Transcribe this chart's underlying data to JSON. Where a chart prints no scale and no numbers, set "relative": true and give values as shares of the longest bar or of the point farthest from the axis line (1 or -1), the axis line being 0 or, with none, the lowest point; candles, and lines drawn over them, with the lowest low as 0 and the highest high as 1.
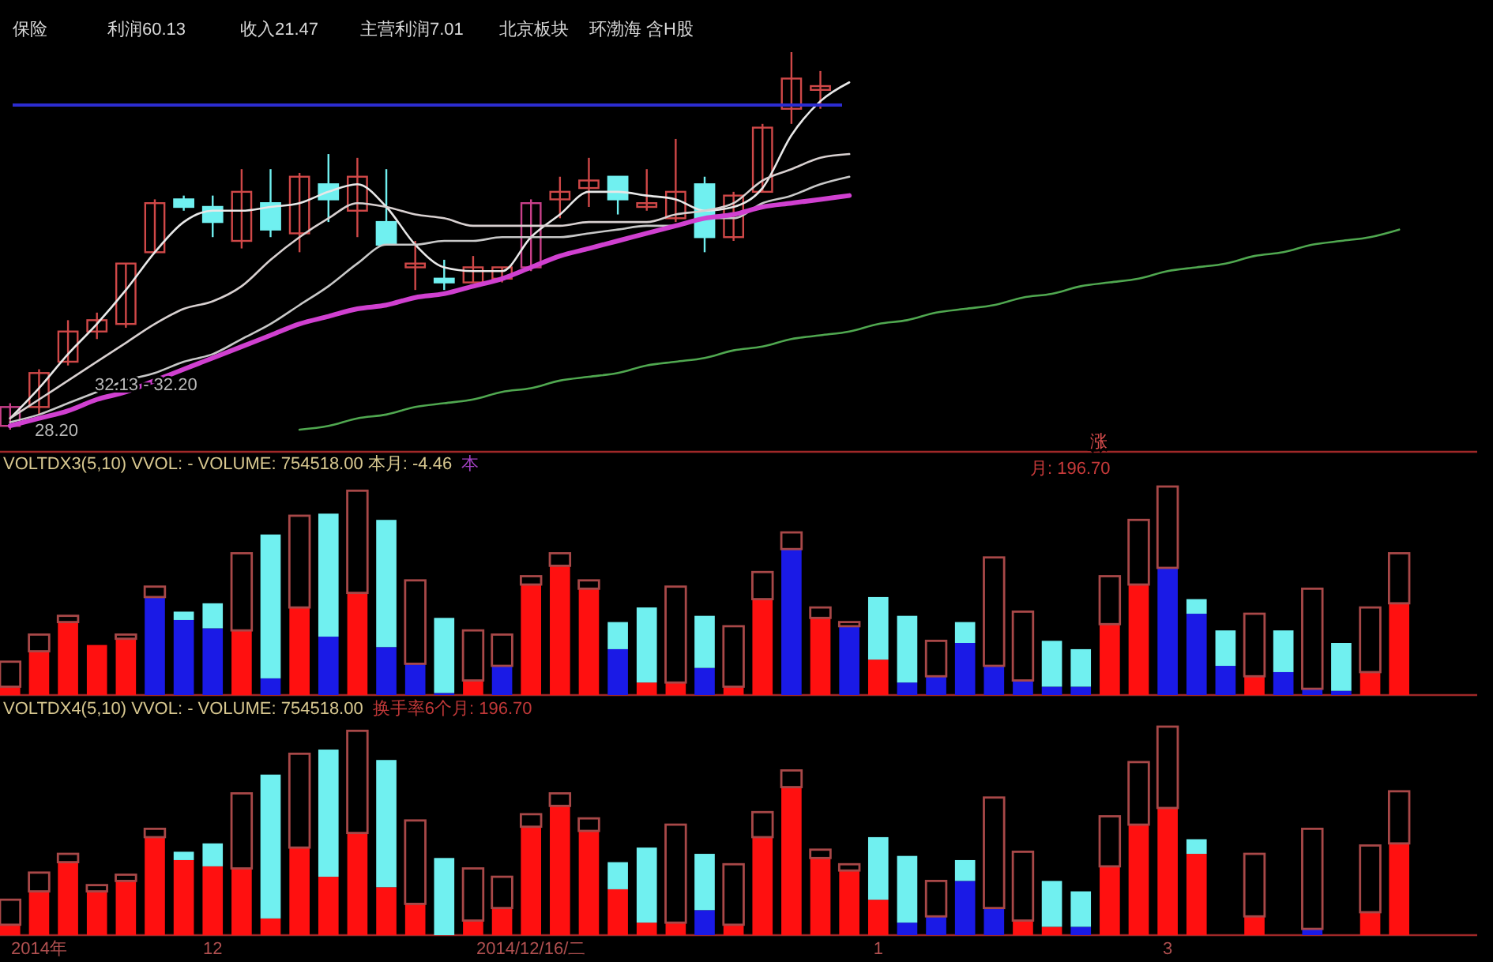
{
  "chart_data": [
    {
      "type": "candlestick",
      "relative": true,
      "tick_labels": false,
      "categories": [
        null,
        null,
        null,
        null,
        null,
        null,
        null,
        null,
        null,
        null,
        null,
        null,
        null,
        null,
        null,
        null,
        null,
        null,
        null,
        null,
        null,
        null,
        null,
        null,
        null,
        null,
        null,
        null,
        null,
        null,
        null,
        null,
        null,
        null,
        null,
        null,
        null,
        null,
        null,
        null,
        null,
        null,
        null,
        null,
        null,
        null,
        null,
        null,
        null
      ],
      "ohlc": [
        [
          0.01,
          0.07,
          0,
          0.06
        ],
        [
          0.06,
          0.16,
          0.04,
          0.15
        ],
        [
          0.18,
          0.29,
          0.17,
          0.26
        ],
        [
          0.26,
          0.31,
          0.24,
          0.29
        ],
        [
          0.28,
          0.44,
          0.27,
          0.44
        ],
        [
          0.47,
          0.61,
          0.47,
          0.6
        ],
        [
          0.61,
          0.62,
          0.58,
          0.59
        ],
        [
          0.59,
          0.62,
          0.51,
          0.55
        ],
        [
          0.5,
          0.69,
          0.48,
          0.63
        ],
        [
          0.6,
          0.69,
          0.51,
          0.53
        ],
        [
          0.52,
          0.68,
          0.47,
          0.67
        ],
        [
          0.65,
          0.73,
          0.55,
          0.61
        ],
        [
          0.58,
          0.72,
          0.51,
          0.67
        ],
        [
          0.55,
          0.69,
          0.49,
          0.49
        ],
        [
          0.43,
          0.5,
          0.37,
          0.44
        ],
        [
          0.4,
          0.45,
          0.37,
          0.39
        ],
        [
          0.39,
          0.46,
          0.39,
          0.43
        ],
        [
          0.4,
          0.43,
          0.39,
          0.43
        ],
        [
          0.43,
          0.61,
          0.42,
          0.6
        ],
        [
          0.61,
          0.67,
          0.56,
          0.63
        ],
        [
          0.64,
          0.72,
          0.59,
          0.66
        ],
        [
          0.67,
          0.67,
          0.57,
          0.61
        ],
        [
          0.59,
          0.69,
          0.58,
          0.6
        ],
        [
          0.56,
          0.77,
          0.55,
          0.63
        ],
        [
          0.65,
          0.67,
          0.47,
          0.51
        ],
        [
          0.51,
          0.63,
          0.5,
          0.62
        ],
        [
          0.63,
          0.81,
          0.63,
          0.8
        ],
        [
          0.85,
          1,
          0.81,
          0.93
        ],
        [
          0.9,
          0.95,
          0.85,
          0.91
        ],
        null,
        null,
        null,
        null,
        null,
        null,
        null,
        null,
        null,
        null,
        null,
        null,
        null,
        null,
        null,
        null,
        null,
        null,
        null,
        null
      ],
      "colors": [
        "#c8408a",
        "#d04848",
        "#d04848",
        "#d04848",
        "#d04848",
        "#d04848",
        "#70f0f0",
        "#70f0f0",
        "#d04848",
        "#70f0f0",
        "#d04848",
        "#70f0f0",
        "#d04848",
        "#70f0f0",
        "#d04848",
        "#70f0f0",
        "#d04848",
        "#d04848",
        "#c8408a",
        "#d04848",
        "#d04848",
        "#70f0f0",
        "#d04848",
        "#d04848",
        "#70f0f0",
        "#d04848",
        "#d04848",
        "#d04848",
        "#d04848",
        null,
        null,
        null,
        null,
        null,
        null,
        null,
        null,
        null,
        null,
        null,
        null,
        null,
        null,
        null,
        null,
        null,
        null,
        null,
        null
      ],
      "series": [
        {
          "type": "line",
          "color": "#e8e8e8",
          "values": [
            0.03,
            0.11,
            0.2,
            0.28,
            0.37,
            0.47,
            0.55,
            0.58,
            0.58,
            0.59,
            0.6,
            0.63,
            0.65,
            0.59,
            0.49,
            0.43,
            0.42,
            0.42,
            0.51,
            0.57,
            0.63,
            0.63,
            0.62,
            0.61,
            0.58,
            0.59,
            0.64,
            0.78,
            0.87,
            0.92,
            null,
            null,
            null,
            null,
            null,
            null,
            null,
            null,
            null,
            null,
            null,
            null,
            null,
            null,
            null,
            null,
            null,
            null,
            null
          ]
        },
        {
          "type": "line",
          "color": "#d8d0d0",
          "values": [
            0.03,
            0.08,
            0.13,
            0.18,
            0.23,
            0.28,
            0.32,
            0.34,
            0.38,
            0.45,
            0.51,
            0.56,
            0.6,
            0.59,
            0.57,
            0.56,
            0.54,
            0.54,
            0.54,
            0.54,
            0.55,
            0.55,
            0.55,
            0.57,
            0.58,
            0.6,
            0.66,
            0.69,
            0.72,
            0.73,
            null,
            null,
            null,
            null,
            null,
            null,
            null,
            null,
            null,
            null,
            null,
            null,
            null,
            null,
            null,
            null,
            null,
            null,
            null
          ]
        },
        {
          "type": "line",
          "color": "#c8c8c8",
          "values": [
            0.02,
            0.04,
            0.07,
            0.1,
            0.13,
            0.15,
            0.18,
            0.2,
            0.24,
            0.28,
            0.33,
            0.38,
            0.44,
            0.49,
            0.49,
            0.5,
            0.5,
            0.51,
            0.51,
            0.51,
            0.52,
            0.53,
            0.54,
            0.54,
            0.56,
            0.56,
            0.6,
            0.62,
            0.65,
            0.67,
            null,
            null,
            null,
            null,
            null,
            null,
            null,
            null,
            null,
            null,
            null,
            null,
            null,
            null,
            null,
            null,
            null,
            null,
            null
          ]
        },
        {
          "type": "line",
          "color": "#d040d0",
          "values": [
            0.01,
            0.03,
            0.05,
            0.08,
            0.1,
            0.13,
            0.16,
            0.19,
            0.22,
            0.25,
            0.28,
            0.3,
            0.32,
            0.33,
            0.35,
            0.36,
            0.38,
            0.4,
            0.43,
            0.46,
            0.48,
            0.5,
            0.52,
            0.54,
            0.56,
            0.57,
            0.59,
            0.6,
            0.61,
            0.62,
            null,
            null,
            null,
            null,
            null,
            null,
            null,
            null,
            null,
            null,
            null,
            null,
            null,
            null,
            null,
            null,
            null,
            null,
            null
          ]
        },
        {
          "type": "line",
          "color": "#50a850",
          "values": [
            null,
            null,
            null,
            null,
            null,
            null,
            null,
            null,
            null,
            null,
            0,
            0.01,
            0.03,
            0.04,
            0.06,
            0.07,
            0.08,
            0.1,
            0.11,
            0.13,
            0.14,
            0.15,
            0.17,
            0.18,
            0.19,
            0.21,
            0.22,
            0.24,
            0.25,
            0.26,
            0.28,
            0.29,
            0.31,
            0.32,
            0.33,
            0.35,
            0.36,
            0.38,
            0.39,
            0.4,
            0.42,
            0.43,
            0.44,
            0.46,
            0.47,
            0.49,
            0.5,
            0.51,
            0.53
          ]
        }
      ],
      "ref_lines": [
        {
          "axis": "y",
          "value": 0.86,
          "color": "#2c2cd0"
        }
      ],
      "annotations": [
        "保险",
        "利润60.13",
        "收入21.47",
        "主营利润7.01",
        "北京板块",
        "环渤海 含H股",
        "32.13 - 32.20",
        "28.20"
      ]
    },
    {
      "type": "bar",
      "stacked": true,
      "relative": true,
      "tick_labels": false,
      "title": "VOLTDX3(5,10) VVOL: -  VOLUME: 754518.00 本月: -4.46",
      "subtitle": "本",
      "categories": [
        null,
        null,
        null,
        null,
        null,
        null,
        null,
        null,
        null,
        null,
        null,
        null,
        null,
        null,
        null,
        null,
        null,
        null,
        null,
        null,
        null,
        null,
        null,
        null,
        null,
        null,
        null,
        null,
        null,
        null,
        null,
        null,
        null,
        null,
        null,
        null,
        null,
        null,
        null,
        null,
        null,
        null,
        null,
        null,
        null,
        null,
        null,
        null,
        null
      ],
      "series": [
        {
          "colors": [
            "#ff1010",
            "#ff1010",
            "#ff1010",
            "#ff1010",
            "#ff1010",
            "#1a1ae6",
            "#1a1ae6",
            "#1a1ae6",
            "#ff1010",
            "#1a1ae6",
            "#ff1010",
            "#1a1ae6",
            "#ff1010",
            "#1a1ae6",
            "#1a1ae6",
            "#1a1ae6",
            "#ff1010",
            "#1a1ae6",
            "#ff1010",
            "#ff1010",
            "#ff1010",
            "#1a1ae6",
            "#ff1010",
            "#ff1010",
            "#1a1ae6",
            "#ff1010",
            "#ff1010",
            "#1a1ae6",
            "#ff1010",
            "#1a1ae6",
            "#ff1010",
            "#1a1ae6",
            "#1a1ae6",
            "#1a1ae6",
            "#1a1ae6",
            "#1a1ae6",
            "#1a1ae6",
            "#1a1ae6",
            "#ff1010",
            "#ff1010",
            "#1a1ae6",
            "#1a1ae6",
            "#1a1ae6",
            "#ff1010",
            "#1a1ae6",
            "#1a1ae6",
            "#1a1ae6",
            "#ff1010",
            "#ff1010"
          ],
          "values": [
            0.04,
            0.21,
            0.35,
            0.24,
            0.27,
            0.47,
            0.36,
            0.32,
            0.31,
            0.08,
            0.42,
            0.28,
            0.49,
            0.23,
            0.15,
            0.01,
            0.07,
            0.14,
            0.53,
            0.62,
            0.51,
            0.22,
            0.06,
            0.06,
            0.13,
            0.04,
            0.46,
            0.7,
            0.37,
            0.33,
            0.17,
            0.06,
            0.09,
            0.25,
            0.14,
            0.07,
            0.04,
            0.04,
            0.34,
            0.53,
            0.61,
            0.39,
            0.14,
            0.09,
            0.11,
            0.03,
            0.02,
            0.11,
            0.44
          ]
        },
        {
          "color": "#70f0f0",
          "values": [
            null,
            null,
            null,
            null,
            null,
            null,
            0.04,
            0.12,
            null,
            0.69,
            null,
            0.59,
            null,
            0.61,
            null,
            0.36,
            null,
            null,
            null,
            null,
            null,
            0.13,
            0.36,
            null,
            0.25,
            null,
            null,
            null,
            null,
            null,
            0.3,
            0.32,
            null,
            0.1,
            null,
            null,
            0.22,
            0.18,
            null,
            null,
            null,
            0.07,
            0.17,
            null,
            0.2,
            null,
            0.23,
            null,
            null
          ]
        },
        {
          "color": "#a84848",
          "values": [
            0.12,
            0.08,
            0.03,
            null,
            0.02,
            0.05,
            null,
            null,
            0.37,
            null,
            0.44,
            null,
            0.49,
            null,
            0.4,
            null,
            0.24,
            0.15,
            0.04,
            0.06,
            0.04,
            null,
            null,
            0.46,
            null,
            0.29,
            0.13,
            0.08,
            0.05,
            0.02,
            null,
            null,
            0.17,
            null,
            0.52,
            0.33,
            null,
            null,
            0.23,
            0.31,
            0.39,
            null,
            null,
            0.3,
            null,
            0.48,
            null,
            0.31,
            0.24
          ]
        }
      ],
      "annotations": [
        "涨",
        "月: 196.70"
      ]
    },
    {
      "type": "bar",
      "stacked": true,
      "relative": true,
      "tick_labels": "x",
      "title": "VOLTDX4(5,10) VVOL: -  VOLUME: 754518.00",
      "subtitle": "换手率6个月: 196.70",
      "categories": [
        null,
        "2014年",
        null,
        null,
        null,
        null,
        null,
        "12",
        null,
        null,
        null,
        null,
        null,
        null,
        null,
        null,
        null,
        null,
        "2014/12/16/二",
        null,
        null,
        null,
        null,
        null,
        null,
        null,
        null,
        null,
        null,
        null,
        "1",
        null,
        null,
        null,
        null,
        null,
        null,
        null,
        null,
        null,
        "3",
        null,
        null,
        null,
        null,
        null,
        null,
        null,
        null
      ],
      "series": [
        {
          "colors": [
            "#ff1010",
            "#ff1010",
            "#ff1010",
            "#ff1010",
            "#ff1010",
            "#ff1010",
            "#ff1010",
            "#ff1010",
            "#ff1010",
            "#ff1010",
            "#ff1010",
            "#ff1010",
            "#ff1010",
            "#ff1010",
            "#ff1010",
            null,
            "#ff1010",
            "#ff1010",
            "#ff1010",
            "#ff1010",
            "#ff1010",
            "#ff1010",
            "#ff1010",
            "#ff1010",
            "#1a1ae6",
            "#ff1010",
            "#ff1010",
            "#ff1010",
            "#ff1010",
            "#ff1010",
            "#ff1010",
            "#1a1ae6",
            "#1a1ae6",
            "#1a1ae6",
            "#1a1ae6",
            "#ff1010",
            "#ff1010",
            "#1a1ae6",
            "#ff1010",
            "#ff1010",
            "#ff1010",
            "#ff1010",
            null,
            "#ff1010",
            null,
            "#1a1ae6",
            null,
            "#ff1010",
            "#ff1010"
          ],
          "values": [
            0.05,
            0.21,
            0.35,
            0.21,
            0.26,
            0.47,
            0.36,
            0.33,
            0.32,
            0.08,
            0.42,
            0.28,
            0.49,
            0.23,
            0.15,
            null,
            0.07,
            0.13,
            0.52,
            0.62,
            0.5,
            0.22,
            0.06,
            0.06,
            0.12,
            0.05,
            0.47,
            0.71,
            0.37,
            0.31,
            0.17,
            0.06,
            0.09,
            0.26,
            0.13,
            0.07,
            0.04,
            0.04,
            0.33,
            0.53,
            0.61,
            0.39,
            null,
            0.09,
            null,
            0.03,
            null,
            0.11,
            0.44
          ]
        },
        {
          "color": "#70f0f0",
          "values": [
            null,
            null,
            null,
            null,
            null,
            null,
            0.04,
            0.11,
            null,
            0.69,
            null,
            0.61,
            null,
            0.61,
            null,
            0.37,
            null,
            null,
            null,
            null,
            null,
            0.13,
            0.36,
            null,
            0.27,
            null,
            null,
            null,
            null,
            null,
            0.3,
            0.32,
            null,
            0.1,
            null,
            null,
            0.22,
            0.17,
            null,
            null,
            null,
            0.07,
            null,
            null,
            null,
            null,
            null,
            null,
            null
          ]
        },
        {
          "color": "#a84848",
          "values": [
            0.12,
            0.09,
            0.04,
            0.03,
            0.03,
            0.04,
            null,
            null,
            0.36,
            null,
            0.45,
            null,
            0.49,
            null,
            0.4,
            null,
            0.25,
            0.15,
            0.06,
            0.06,
            0.06,
            null,
            null,
            0.47,
            null,
            0.29,
            0.12,
            0.08,
            0.04,
            0.03,
            null,
            null,
            0.17,
            null,
            0.53,
            0.33,
            null,
            null,
            0.24,
            0.3,
            0.39,
            null,
            null,
            0.3,
            null,
            0.48,
            null,
            0.32,
            0.25
          ]
        }
      ]
    }
  ]
}
